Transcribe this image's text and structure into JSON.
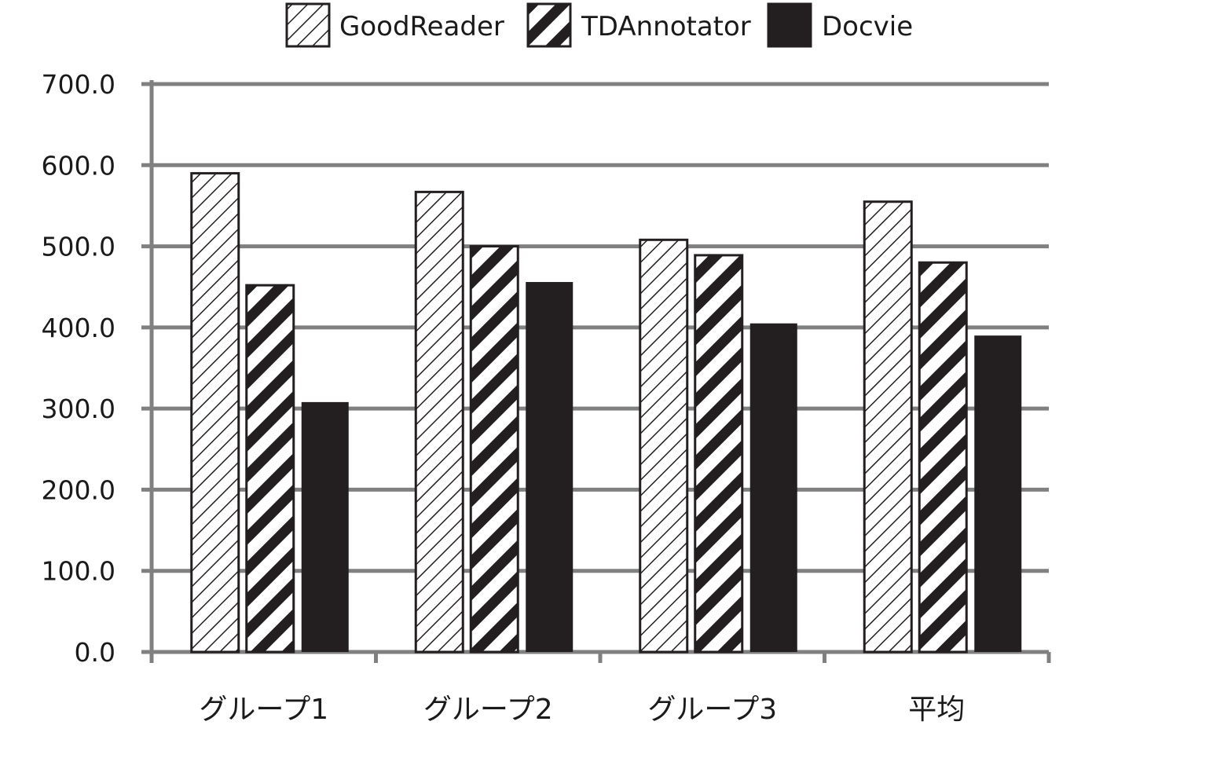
{
  "chart_data": {
    "type": "bar",
    "categories": [
      "グループ1",
      "グループ2",
      "グループ3",
      "平均"
    ],
    "series": [
      {
        "name": "GoodReader",
        "values": [
          590,
          567,
          508,
          555
        ],
        "pattern": "light-hatch"
      },
      {
        "name": "TDAnnotator",
        "values": [
          452,
          500,
          489,
          480
        ],
        "pattern": "bold-hatch"
      },
      {
        "name": "Docvie",
        "values": [
          308,
          456,
          405,
          390
        ],
        "pattern": "solid"
      }
    ],
    "ylim": [
      0,
      700
    ],
    "yticks": [
      "0.0",
      "100.0",
      "200.0",
      "300.0",
      "400.0",
      "500.0",
      "600.0",
      "700.0"
    ],
    "grid": true,
    "legend_position": "top-center",
    "title": "",
    "xlabel": "",
    "ylabel": "",
    "colors": {
      "bar_fill": "#231f20",
      "grid": "#808080",
      "outline": "#231f20",
      "background": "#ffffff"
    }
  }
}
